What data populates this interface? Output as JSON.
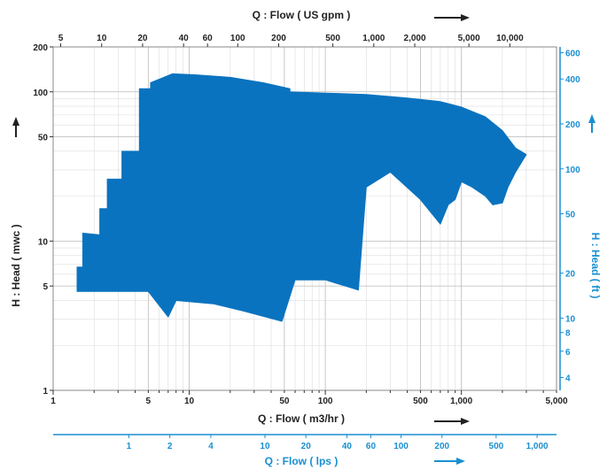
{
  "chart_data": {
    "type": "area",
    "title": "",
    "x_scale": "log",
    "y_scale": "log",
    "xlim": [
      1,
      5000
    ],
    "ylim": [
      1,
      200
    ],
    "grid": true,
    "legend": "none",
    "fill_color": "#0a73bf",
    "axis_color_secondary": "#1a8fd0",
    "axes": {
      "bottom": {
        "label": "Q : Flow ( m3/hr )",
        "ticks": [
          {
            "value": 1,
            "label": "1"
          },
          {
            "value": 5,
            "label": "5"
          },
          {
            "value": 10,
            "label": "10"
          },
          {
            "value": 50,
            "label": "50"
          },
          {
            "value": 100,
            "label": "100"
          },
          {
            "value": 500,
            "label": "500"
          },
          {
            "value": 1000,
            "label": "1,000"
          },
          {
            "value": 5000,
            "label": "5,000"
          }
        ]
      },
      "top": {
        "label": "Q : Flow ( US gpm )",
        "ticks": [
          {
            "value": 5,
            "label": "5"
          },
          {
            "value": 10,
            "label": "10"
          },
          {
            "value": 20,
            "label": "20"
          },
          {
            "value": 40,
            "label": "40"
          },
          {
            "value": 60,
            "label": "60"
          },
          {
            "value": 100,
            "label": "100"
          },
          {
            "value": 200,
            "label": "200"
          },
          {
            "value": 500,
            "label": "500"
          },
          {
            "value": 1000,
            "label": "1,000"
          },
          {
            "value": 2000,
            "label": "2,000"
          },
          {
            "value": 5000,
            "label": "5,000"
          },
          {
            "value": 10000,
            "label": "10,000"
          }
        ]
      },
      "lower": {
        "label": "Q : Flow ( lps )",
        "ticks": [
          {
            "value": 1,
            "label": "1"
          },
          {
            "value": 2,
            "label": "2"
          },
          {
            "value": 4,
            "label": "4"
          },
          {
            "value": 10,
            "label": "10"
          },
          {
            "value": 20,
            "label": "20"
          },
          {
            "value": 40,
            "label": "40"
          },
          {
            "value": 60,
            "label": "60"
          },
          {
            "value": 100,
            "label": "100"
          },
          {
            "value": 200,
            "label": "200"
          },
          {
            "value": 500,
            "label": "500"
          },
          {
            "value": 1000,
            "label": "1,000"
          }
        ]
      },
      "left": {
        "label": "H : Head ( mwc )",
        "ticks": [
          {
            "value": 1,
            "label": "1"
          },
          {
            "value": 5,
            "label": "5"
          },
          {
            "value": 10,
            "label": "10"
          },
          {
            "value": 50,
            "label": "50"
          },
          {
            "value": 100,
            "label": "100"
          },
          {
            "value": 200,
            "label": "200"
          }
        ]
      },
      "right": {
        "label": "H : Head ( ft )",
        "ticks": [
          {
            "value": 4,
            "label": "4"
          },
          {
            "value": 6,
            "label": "6"
          },
          {
            "value": 8,
            "label": "8"
          },
          {
            "value": 10,
            "label": "10"
          },
          {
            "value": 20,
            "label": "20"
          },
          {
            "value": 50,
            "label": "50"
          },
          {
            "value": 100,
            "label": "100"
          },
          {
            "value": 200,
            "label": "200"
          },
          {
            "value": 400,
            "label": "400"
          },
          {
            "value": 600,
            "label": "600"
          }
        ]
      }
    },
    "coverage_boundary": [
      [
        1.5,
        4.6
      ],
      [
        1.5,
        6.7
      ],
      [
        1.65,
        6.7
      ],
      [
        1.65,
        11.3
      ],
      [
        2.2,
        11.0
      ],
      [
        2.2,
        16.5
      ],
      [
        2.5,
        16.5
      ],
      [
        2.5,
        26
      ],
      [
        3.2,
        26
      ],
      [
        3.2,
        40
      ],
      [
        4.3,
        40
      ],
      [
        4.3,
        105
      ],
      [
        5.2,
        105
      ],
      [
        5.2,
        115
      ],
      [
        7.5,
        132
      ],
      [
        11,
        130
      ],
      [
        20,
        125
      ],
      [
        35,
        115
      ],
      [
        55,
        105
      ],
      [
        55,
        100
      ],
      [
        100,
        98
      ],
      [
        200,
        96
      ],
      [
        400,
        91
      ],
      [
        700,
        86
      ],
      [
        1000,
        79
      ],
      [
        1500,
        68
      ],
      [
        2000,
        55
      ],
      [
        2500,
        42
      ],
      [
        3000,
        38
      ],
      [
        2500,
        29
      ],
      [
        2200,
        23
      ],
      [
        2000,
        18
      ],
      [
        1700,
        17.5
      ],
      [
        1500,
        20
      ],
      [
        1200,
        23
      ],
      [
        1000,
        25
      ],
      [
        900,
        19
      ],
      [
        800,
        17.5
      ],
      [
        700,
        13
      ],
      [
        500,
        19
      ],
      [
        300,
        29
      ],
      [
        200,
        23
      ],
      [
        175,
        4.7
      ],
      [
        100,
        5.5
      ],
      [
        60,
        5.5
      ],
      [
        48,
        2.9
      ],
      [
        25,
        3.4
      ],
      [
        15,
        3.8
      ],
      [
        8,
        4.0
      ],
      [
        7,
        3.1
      ],
      [
        5,
        4.6
      ],
      [
        3,
        4.6
      ]
    ]
  }
}
